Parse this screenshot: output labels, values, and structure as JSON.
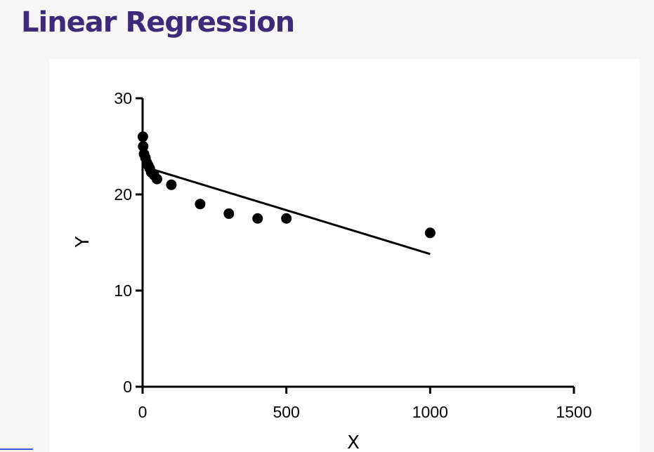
{
  "page": {
    "title": "Linear Regression"
  },
  "chart_data": {
    "type": "scatter",
    "title": "",
    "xlabel": "X",
    "ylabel": "Y",
    "xlim": [
      0,
      1500
    ],
    "ylim": [
      0,
      30
    ],
    "x_ticks": [
      "0",
      "500",
      "1000",
      "1500"
    ],
    "y_ticks": [
      "0",
      "10",
      "20",
      "30"
    ],
    "x_tick_values": [
      0,
      500,
      1000,
      1500
    ],
    "y_tick_values": [
      0,
      10,
      20,
      30
    ],
    "grid": false,
    "legend": "none",
    "series": [
      {
        "kind": "points",
        "x": [
          1,
          2,
          5,
          10,
          15,
          20,
          25,
          30,
          40,
          50,
          100,
          200,
          300,
          400,
          500,
          1000
        ],
        "y": [
          26,
          25,
          24.2,
          23.8,
          23.3,
          23,
          22.7,
          22.3,
          22,
          21.6,
          21,
          19,
          18,
          17.5,
          17.5,
          16
        ]
      },
      {
        "kind": "fit-line",
        "x": [
          35,
          1000
        ],
        "y": [
          22.6,
          13.8
        ]
      }
    ],
    "colors": {
      "points": "#000000",
      "line": "#000000",
      "axes": "#000000"
    }
  },
  "colors": {
    "title": "#3d2a78",
    "page_background": "#f6f6f6",
    "panel_background": "#ffffff"
  }
}
